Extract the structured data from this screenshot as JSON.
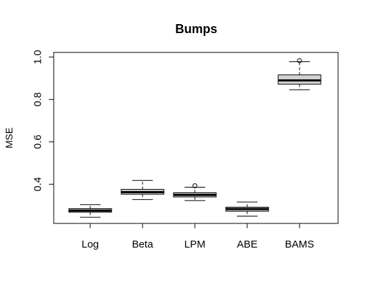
{
  "chart_data": {
    "type": "box",
    "title": "Bumps",
    "xlabel": "",
    "ylabel": "MSE",
    "ylim": [
      0.2,
      1.0
    ],
    "y_ticks": [
      0.4,
      0.6,
      0.8,
      1.0
    ],
    "y_tick_labels": [
      "0.4",
      "0.6",
      "0.8",
      "1.0"
    ],
    "grid": false,
    "box_fill": "#d3d3d3",
    "categories": [
      "Log",
      "Beta",
      "LPM",
      "ABE",
      "BAMS"
    ],
    "boxes": [
      {
        "category": "Log",
        "whisker_low": 0.244,
        "q1": 0.268,
        "median": 0.276,
        "q3": 0.285,
        "whisker_high": 0.304,
        "outliers": []
      },
      {
        "category": "Beta",
        "whisker_low": 0.328,
        "q1": 0.353,
        "median": 0.363,
        "q3": 0.376,
        "whisker_high": 0.418,
        "outliers": []
      },
      {
        "category": "LPM",
        "whisker_low": 0.323,
        "q1": 0.34,
        "median": 0.35,
        "q3": 0.36,
        "whisker_high": 0.386,
        "outliers": [
          0.393
        ]
      },
      {
        "category": "ABE",
        "whisker_low": 0.25,
        "q1": 0.273,
        "median": 0.283,
        "q3": 0.292,
        "whisker_high": 0.316,
        "outliers": []
      },
      {
        "category": "BAMS",
        "whisker_low": 0.846,
        "q1": 0.872,
        "median": 0.89,
        "q3": 0.916,
        "whisker_high": 0.978,
        "outliers": [
          0.983
        ]
      }
    ]
  }
}
